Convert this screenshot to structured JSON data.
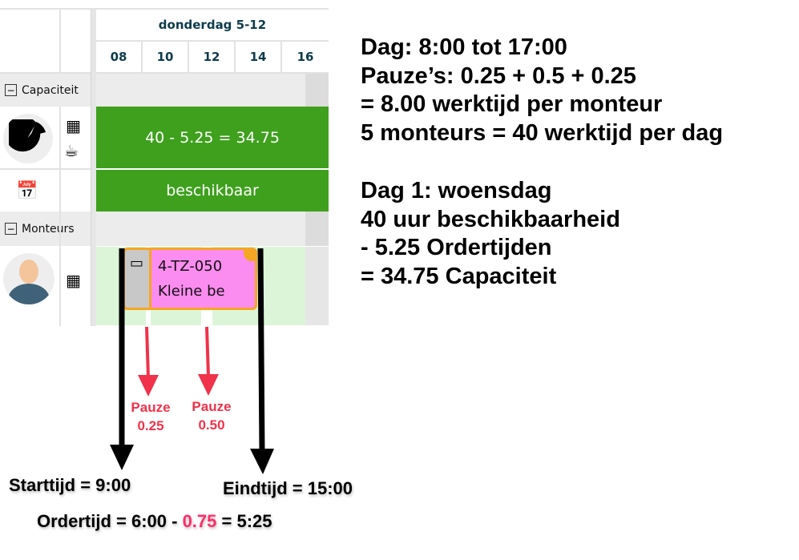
{
  "timeline": {
    "date_header": "donderdag 5-12",
    "hours": [
      "08",
      "10",
      "12",
      "14",
      "16"
    ]
  },
  "groups": {
    "capacity": {
      "label": "Capaciteit",
      "value_text": "40 - 5.25 = 34.75",
      "availability_text": "beschikbaar"
    },
    "mechanics": {
      "label": "Monteurs"
    }
  },
  "event": {
    "line1": "4-TZ-050",
    "line2": "Kleine be"
  },
  "colors": {
    "green": "#3fa01e",
    "event_pink": "#fb8cf0",
    "event_border": "#f5a623",
    "annotation_red": "#f0324a"
  },
  "annotations": {
    "notes": [
      "Dag: 8:00 tot 17:00",
      "Pauze’s: 0.25 + 0.5 + 0.25",
      "= 8.00 werktijd per monteur",
      "5 monteurs = 40 werktijd per dag",
      "",
      "Dag 1: woensdag",
      "40 uur beschikbaarheid",
      "- 5.25 Ordertijden",
      "= 34.75 Capaciteit"
    ],
    "pause1": {
      "label": "Pauze",
      "value": "0.25"
    },
    "pause2": {
      "label": "Pauze",
      "value": "0.50"
    },
    "start": "Starttijd = 9:00",
    "end": "Eindtijd = 15:00",
    "order_prefix": "Ordertijd = 6:00 - ",
    "order_highlight": "0.75",
    "order_suffix": " = 5:25"
  }
}
